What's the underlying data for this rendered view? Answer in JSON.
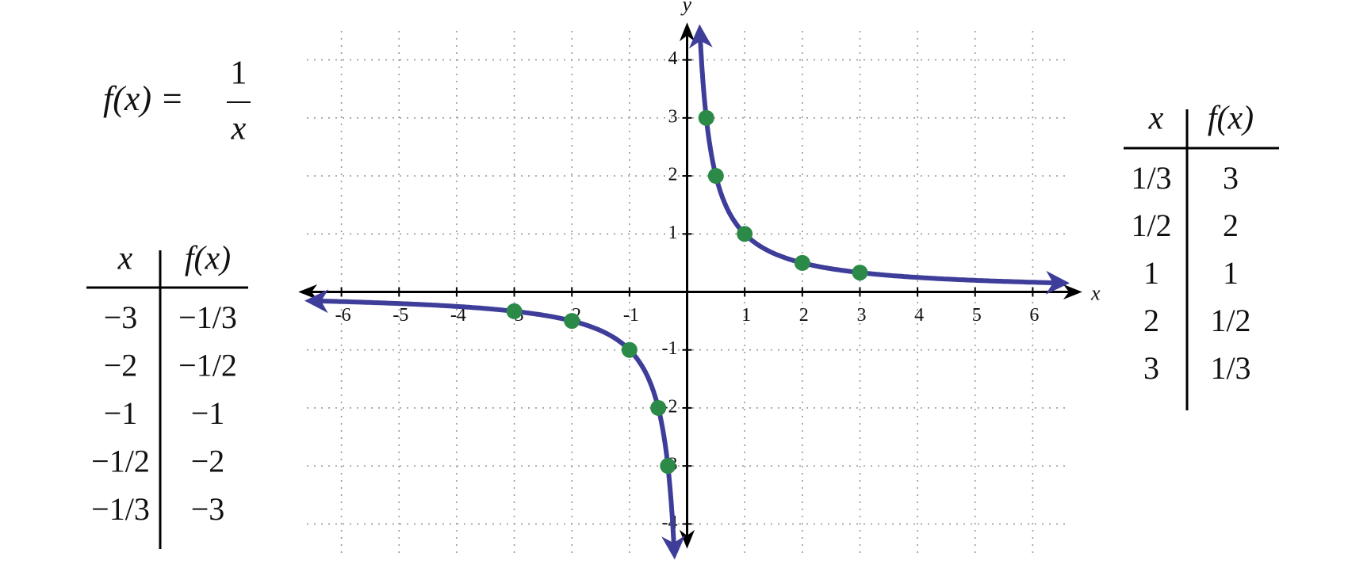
{
  "formula": {
    "lhs": "f(x) =",
    "numerator": "1",
    "denominator": "x"
  },
  "chart_data": {
    "type": "scatter",
    "x_label": "x",
    "y_label": "y",
    "x": [
      -3,
      -2,
      -1,
      -0.5,
      -0.3333,
      0.3333,
      0.5,
      1,
      2,
      3
    ],
    "values": [
      -0.3333,
      -0.5,
      -1,
      -2,
      -3,
      3,
      2,
      1,
      0.5,
      0.3333
    ],
    "color": "#2b8a47",
    "line_color": "#3e3e9a",
    "xlim": [
      -6.6,
      6.6
    ],
    "ylim": [
      -4.5,
      4.5
    ],
    "xticks": [
      -6,
      -5,
      -4,
      -3,
      -2,
      -1,
      1,
      2,
      3,
      4,
      5,
      6
    ],
    "yticks": [
      -4,
      -3,
      -2,
      -1,
      1,
      2,
      3,
      4
    ],
    "grid": true
  },
  "tables": [
    {
      "headers": [
        "x",
        "f(x)"
      ],
      "rows": [
        [
          "−3",
          "−1/3"
        ],
        [
          "−2",
          "−1/2"
        ],
        [
          "−1",
          "−1"
        ],
        [
          "−1/2",
          "−2"
        ],
        [
          "−1/3",
          "−3"
        ]
      ]
    },
    {
      "headers": [
        "x",
        "f(x)"
      ],
      "rows": [
        [
          "1/3",
          "3"
        ],
        [
          "1/2",
          "2"
        ],
        [
          "1",
          "1"
        ],
        [
          "2",
          "1/2"
        ],
        [
          "3",
          "1/3"
        ]
      ]
    }
  ]
}
